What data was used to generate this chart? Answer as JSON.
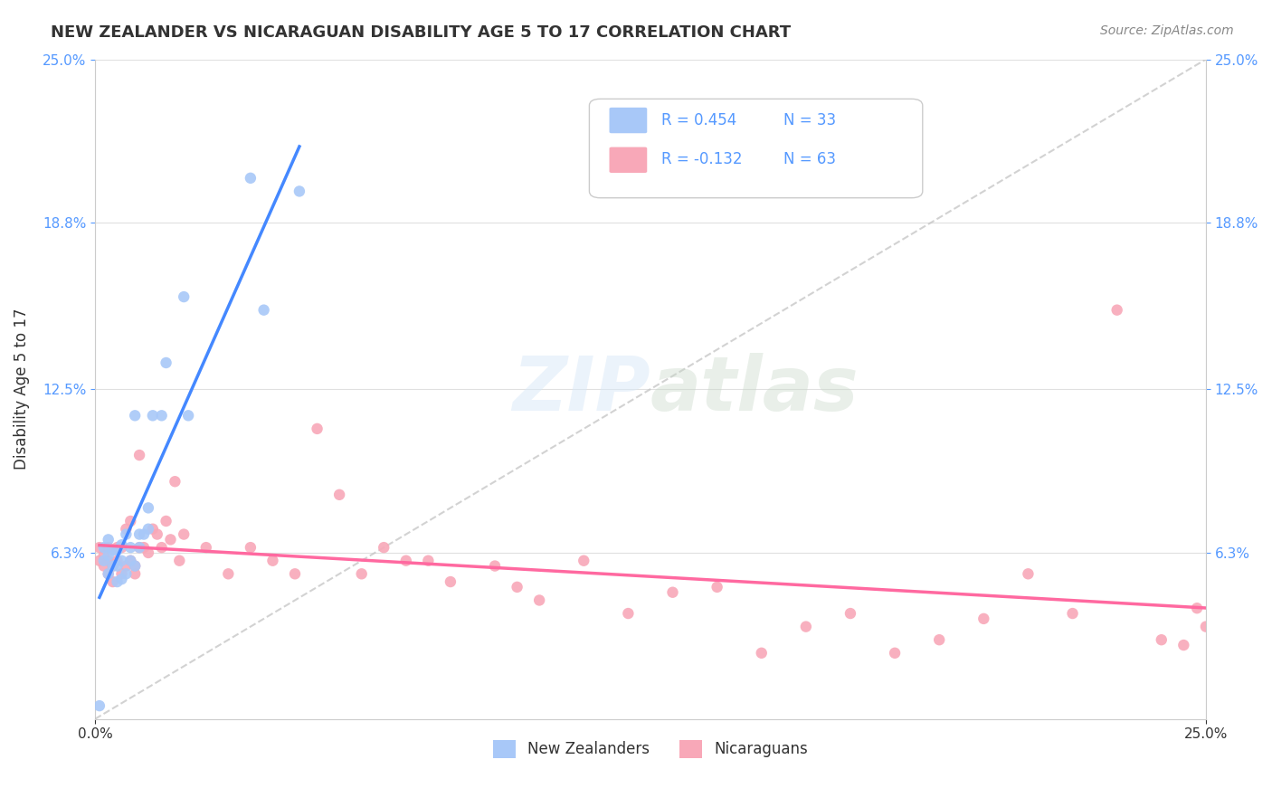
{
  "title": "NEW ZEALANDER VS NICARAGUAN DISABILITY AGE 5 TO 17 CORRELATION CHART",
  "source": "Source: ZipAtlas.com",
  "xlabel": "",
  "ylabel": "Disability Age 5 to 17",
  "xlim": [
    0.0,
    0.25
  ],
  "ylim": [
    0.0,
    0.25
  ],
  "xtick_labels": [
    "0.0%",
    "25.0%"
  ],
  "ytick_labels": [
    "6.3%",
    "12.5%",
    "18.8%",
    "25.0%"
  ],
  "ytick_values": [
    0.063,
    0.125,
    0.188,
    0.25
  ],
  "xtick_values": [
    0.0,
    0.25
  ],
  "legend_r1": "R = 0.454",
  "legend_n1": "N = 33",
  "legend_r2": "R = -0.132",
  "legend_n2": "N = 63",
  "nz_color": "#a8c8f8",
  "nic_color": "#f8a8b8",
  "nz_line_color": "#4488ff",
  "nic_line_color": "#ff69a0",
  "trend_line_color": "#b0b0b0",
  "background_color": "#ffffff",
  "watermark": "ZIPatlas",
  "nz_scatter_x": [
    0.001,
    0.002,
    0.002,
    0.003,
    0.003,
    0.003,
    0.004,
    0.004,
    0.005,
    0.005,
    0.005,
    0.006,
    0.006,
    0.006,
    0.007,
    0.007,
    0.008,
    0.008,
    0.009,
    0.009,
    0.01,
    0.01,
    0.011,
    0.012,
    0.012,
    0.013,
    0.015,
    0.016,
    0.02,
    0.021,
    0.035,
    0.038,
    0.046
  ],
  "nz_scatter_y": [
    0.005,
    0.06,
    0.065,
    0.055,
    0.062,
    0.068,
    0.058,
    0.064,
    0.052,
    0.058,
    0.064,
    0.053,
    0.06,
    0.066,
    0.055,
    0.07,
    0.06,
    0.065,
    0.058,
    0.115,
    0.065,
    0.07,
    0.07,
    0.072,
    0.08,
    0.115,
    0.115,
    0.135,
    0.16,
    0.115,
    0.205,
    0.155,
    0.2
  ],
  "nic_scatter_x": [
    0.001,
    0.001,
    0.002,
    0.002,
    0.003,
    0.003,
    0.003,
    0.004,
    0.004,
    0.005,
    0.005,
    0.006,
    0.006,
    0.007,
    0.007,
    0.008,
    0.008,
    0.009,
    0.009,
    0.01,
    0.01,
    0.011,
    0.012,
    0.013,
    0.014,
    0.015,
    0.016,
    0.017,
    0.018,
    0.019,
    0.02,
    0.025,
    0.03,
    0.035,
    0.04,
    0.045,
    0.05,
    0.055,
    0.06,
    0.065,
    0.07,
    0.075,
    0.08,
    0.09,
    0.095,
    0.1,
    0.11,
    0.12,
    0.13,
    0.14,
    0.15,
    0.16,
    0.17,
    0.18,
    0.19,
    0.2,
    0.21,
    0.22,
    0.23,
    0.24,
    0.245,
    0.248,
    0.25
  ],
  "nic_scatter_y": [
    0.06,
    0.065,
    0.058,
    0.062,
    0.055,
    0.06,
    0.065,
    0.052,
    0.058,
    0.06,
    0.065,
    0.055,
    0.065,
    0.058,
    0.072,
    0.06,
    0.075,
    0.055,
    0.058,
    0.065,
    0.1,
    0.065,
    0.063,
    0.072,
    0.07,
    0.065,
    0.075,
    0.068,
    0.09,
    0.06,
    0.07,
    0.065,
    0.055,
    0.065,
    0.06,
    0.055,
    0.11,
    0.085,
    0.055,
    0.065,
    0.06,
    0.06,
    0.052,
    0.058,
    0.05,
    0.045,
    0.06,
    0.04,
    0.048,
    0.05,
    0.025,
    0.035,
    0.04,
    0.025,
    0.03,
    0.038,
    0.055,
    0.04,
    0.155,
    0.03,
    0.028,
    0.042,
    0.035
  ]
}
